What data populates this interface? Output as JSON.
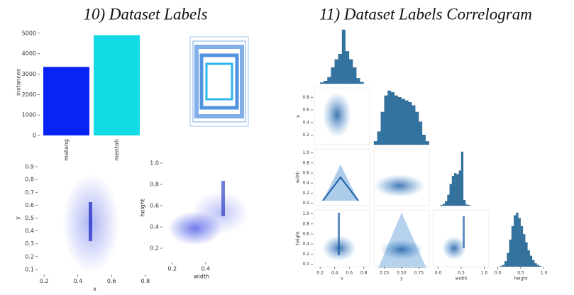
{
  "headings": [
    "10) Dataset Labels",
    "11) Dataset Labels Correlogram"
  ],
  "chart_data": [
    {
      "type": "bar",
      "categories": [
        "matang",
        "mentah"
      ],
      "values": [
        3350,
        4900
      ],
      "colors": [
        "#0a23f5",
        "#12dbe6"
      ],
      "ylabel": "instances",
      "ylim": [
        0,
        5200
      ],
      "yticks": [
        0,
        1000,
        2000,
        3000,
        4000,
        5000
      ]
    },
    {
      "type": "density",
      "xlabel": "x",
      "ylabel": "y",
      "color": "#2030e0",
      "xlim": [
        0.17,
        0.83
      ],
      "xticks": [
        0.2,
        0.4,
        0.6,
        0.8
      ],
      "ylim": [
        0.07,
        0.93
      ],
      "yticks": [
        0.1,
        0.2,
        0.3,
        0.4,
        0.5,
        0.6,
        0.7,
        0.8,
        0.9
      ]
    },
    {
      "type": "density",
      "xlabel": "width",
      "ylabel": "height",
      "color": "#2030e0",
      "xlim": [
        0.15,
        0.6
      ],
      "xticks": [
        0.2,
        0.4
      ],
      "ylim": [
        0.08,
        1.08
      ],
      "yticks": [
        0.2,
        0.4,
        0.6,
        0.8,
        {
          "value": 1,
          "label": "1.0"
        }
      ]
    },
    {
      "type": "correlogram",
      "color": "#3274a1",
      "x_axes": [
        {
          "label": "x",
          "lim": [
            0.12,
            0.88
          ],
          "ticks": [
            0.2,
            0.4,
            0.6,
            0.8
          ]
        },
        {
          "label": "y",
          "lim": [
            0.1,
            0.9
          ],
          "ticks": [
            0.25,
            {
              "value": 0.5,
              "label": "0.50"
            },
            0.75
          ]
        },
        {
          "label": "width",
          "lim": [
            -0.1,
            1.1
          ],
          "ticks": [
            {
              "value": 0,
              "label": "0.0"
            },
            0.5,
            {
              "value": 1,
              "label": "1.0"
            }
          ]
        },
        {
          "label": "height",
          "lim": [
            -0.1,
            1.1
          ],
          "ticks": [
            {
              "value": 0,
              "label": "0.0"
            },
            0.5,
            {
              "value": 1,
              "label": "1.0"
            }
          ]
        }
      ],
      "y_axes": [
        {
          "label": "y",
          "lim": [
            0.05,
            0.95
          ],
          "ticks": [
            0.2,
            0.4,
            0.6,
            0.8
          ]
        },
        {
          "label": "width",
          "lim": [
            -0.05,
            1.08
          ],
          "ticks": [
            {
              "value": 0,
              "label": "0.0"
            },
            0.2,
            0.4,
            0.6,
            0.8,
            {
              "value": 1,
              "label": "1.0"
            }
          ]
        },
        {
          "label": "height",
          "lim": [
            -0.05,
            1.08
          ],
          "ticks": [
            {
              "value": 0,
              "label": "0.0"
            },
            0.2,
            0.4,
            0.6,
            0.8,
            {
              "value": 1,
              "label": "1.0"
            }
          ]
        }
      ],
      "histograms": [
        {
          "bins": [
            0.2,
            0.25,
            0.3,
            0.35,
            0.4,
            0.45,
            0.5,
            0.55,
            0.6,
            0.65,
            0.7,
            0.75,
            0.8
          ],
          "counts": [
            2,
            5,
            12,
            30,
            45,
            55,
            100,
            60,
            45,
            30,
            10,
            3
          ]
        },
        {
          "bins": [
            0.1,
            0.15,
            0.2,
            0.25,
            0.3,
            0.35,
            0.4,
            0.45,
            0.5,
            0.55,
            0.6,
            0.65,
            0.7,
            0.75,
            0.8,
            0.85,
            0.9
          ],
          "counts": [
            2,
            8,
            20,
            30,
            33,
            32,
            30,
            29,
            28,
            27,
            26,
            24,
            20,
            14,
            6,
            2
          ]
        },
        {
          "bins": [
            0,
            0.05,
            0.1,
            0.15,
            0.2,
            0.25,
            0.3,
            0.35,
            0.4,
            0.45,
            0.5,
            0.55,
            0.6,
            0.65,
            0.7,
            0.75,
            0.8
          ],
          "counts": [
            0,
            1,
            3,
            8,
            20,
            40,
            55,
            60,
            58,
            65,
            100,
            10,
            2,
            1,
            0,
            0
          ]
        },
        {
          "bins": [
            0,
            0.05,
            0.1,
            0.15,
            0.2,
            0.25,
            0.3,
            0.35,
            0.4,
            0.45,
            0.5,
            0.55,
            0.6,
            0.65,
            0.7,
            0.75,
            0.8,
            0.85,
            0.9,
            0.95,
            1
          ],
          "counts": [
            0,
            1,
            3,
            10,
            25,
            50,
            75,
            95,
            100,
            90,
            75,
            60,
            45,
            30,
            20,
            12,
            6,
            3,
            1,
            0
          ]
        }
      ]
    }
  ]
}
